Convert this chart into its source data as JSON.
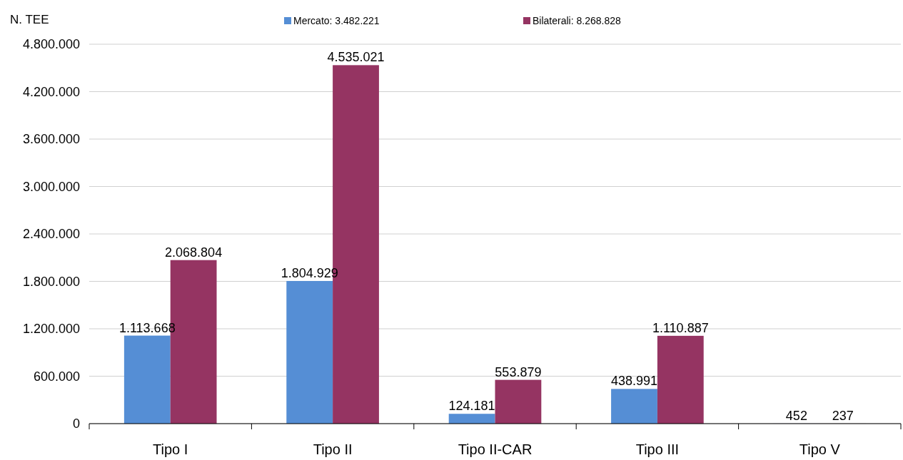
{
  "chart_data": {
    "type": "bar",
    "ylabel": "N. TEE",
    "categories": [
      "Tipo I",
      "Tipo II",
      "Tipo II-CAR",
      "Tipo III",
      "Tipo V"
    ],
    "series": [
      {
        "name": "Mercato: 3.482.221",
        "color": "#558ed5",
        "values": [
          1113668,
          1804929,
          124181,
          438991,
          452
        ],
        "value_labels": [
          "1.113.668",
          "1.804.929",
          "124.181",
          "438.991",
          "452"
        ]
      },
      {
        "name": "Bilaterali: 8.268.828",
        "color": "#953462",
        "values": [
          2068804,
          4535021,
          553879,
          1110887,
          237
        ],
        "value_labels": [
          "2.068.804",
          "4.535.021",
          "553.879",
          "1.110.887",
          "237"
        ]
      }
    ],
    "ylim": [
      0,
      4800000
    ],
    "yticks": [
      {
        "value": 0,
        "label": "0"
      },
      {
        "value": 600000,
        "label": "600.000"
      },
      {
        "value": 1200000,
        "label": "1.200.000"
      },
      {
        "value": 1800000,
        "label": "1.800.000"
      },
      {
        "value": 2400000,
        "label": "2.400.000"
      },
      {
        "value": 3000000,
        "label": "3.000.000"
      },
      {
        "value": 3600000,
        "label": "3.600.000"
      },
      {
        "value": 4200000,
        "label": "4.200.000"
      },
      {
        "value": 4800000,
        "label": "4.800.000"
      }
    ],
    "grid": "y",
    "legend": "top"
  }
}
